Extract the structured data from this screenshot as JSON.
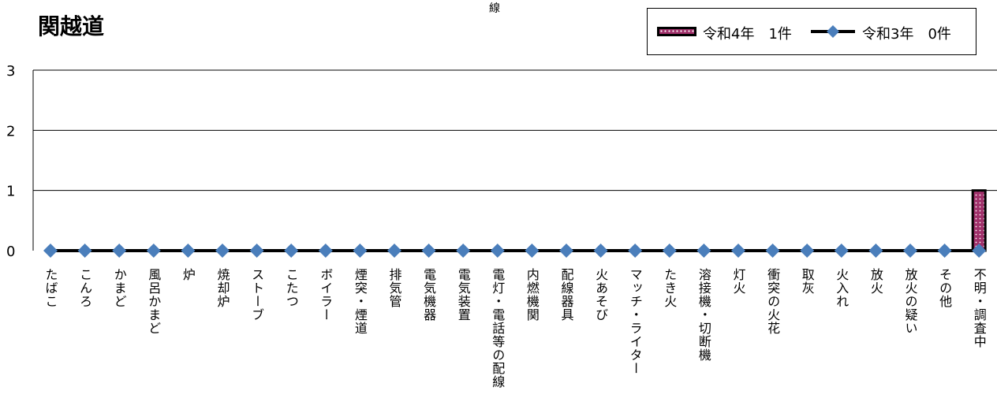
{
  "title": "関越道",
  "stray_text": "線",
  "legend": {
    "bar_label": "令和4年　1件",
    "line_label": "令和3年　0件"
  },
  "colors": {
    "bar_fill": "#a0306a",
    "bar_border": "#000000",
    "line": "#000000",
    "marker": "#4a7ebb"
  },
  "chart_data": {
    "type": "bar",
    "title": "関越道",
    "categories": [
      "たばこ",
      "こんろ",
      "かまど",
      "風呂かまど",
      "炉",
      "焼却炉",
      "ストーブ",
      "こたつ",
      "ボイラー",
      "煙突・煙道",
      "排気管",
      "電気機器",
      "電気装置",
      "電灯・電話等の配線",
      "内燃機関",
      "配線器具",
      "火あそび",
      "マッチ・ライター",
      "たき火",
      "溶接機・切断機",
      "灯火",
      "衝突の火花",
      "取灰",
      "火入れ",
      "放火",
      "放火の疑い",
      "その他",
      "不明・調査中"
    ],
    "series": [
      {
        "name": "令和4年　1件",
        "type": "bar",
        "values": [
          0,
          0,
          0,
          0,
          0,
          0,
          0,
          0,
          0,
          0,
          0,
          0,
          0,
          0,
          0,
          0,
          0,
          0,
          0,
          0,
          0,
          0,
          0,
          0,
          0,
          0,
          0,
          1
        ]
      },
      {
        "name": "令和3年　0件",
        "type": "line",
        "values": [
          0,
          0,
          0,
          0,
          0,
          0,
          0,
          0,
          0,
          0,
          0,
          0,
          0,
          0,
          0,
          0,
          0,
          0,
          0,
          0,
          0,
          0,
          0,
          0,
          0,
          0,
          0,
          0
        ]
      }
    ],
    "ylim": [
      0,
      3
    ],
    "yticks": [
      0,
      1,
      2,
      3
    ],
    "grid": true,
    "legend_position": "top-right"
  }
}
